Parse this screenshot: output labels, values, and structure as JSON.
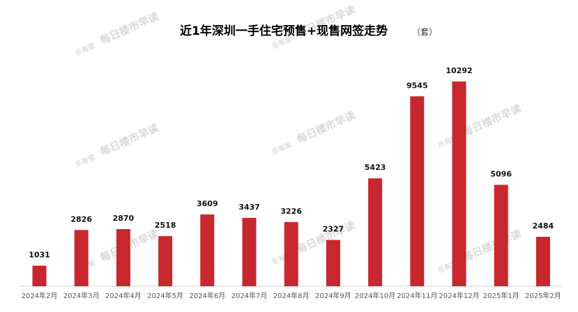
{
  "chart_data": {
    "type": "bar",
    "title": "近1年深圳一手住宅预售+现售网签走势",
    "unit": "（套）",
    "categories": [
      "2024年2月",
      "2024年3月",
      "2024年4月",
      "2024年5月",
      "2024年6月",
      "2024年7月",
      "2024年8月",
      "2024年9月",
      "2024年10月",
      "2024年11月",
      "2024年12月",
      "2025年1月",
      "2025年2月"
    ],
    "values": [
      1031,
      2826,
      2870,
      2518,
      3609,
      3437,
      3226,
      2327,
      5423,
      9545,
      10292,
      5096,
      2484
    ],
    "xlabel": "",
    "ylabel": "",
    "ylim": [
      0,
      10292
    ],
    "bar_color": "#c8272d",
    "grid": false,
    "legend": "none"
  },
  "watermark": {
    "text": "每日楼市早读",
    "logo": "乐有家"
  }
}
